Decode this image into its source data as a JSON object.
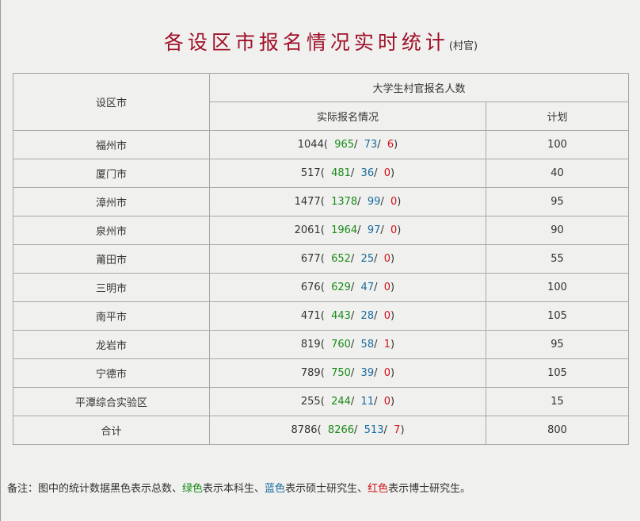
{
  "title": "各设区市报名情况实时统计",
  "title_suffix": "(村官)",
  "headers": {
    "region": "设区市",
    "group": "大学生村官报名人数",
    "actual": "实际报名情况",
    "plan": "计划"
  },
  "rows": [
    {
      "name": "福州市",
      "total": "1044",
      "bachelor": "965",
      "master": "73",
      "doctor": "6",
      "plan": "100"
    },
    {
      "name": "厦门市",
      "total": "517",
      "bachelor": "481",
      "master": "36",
      "doctor": "0",
      "plan": "40"
    },
    {
      "name": "漳州市",
      "total": "1477",
      "bachelor": "1378",
      "master": "99",
      "doctor": "0",
      "plan": "95"
    },
    {
      "name": "泉州市",
      "total": "2061",
      "bachelor": "1964",
      "master": "97",
      "doctor": "0",
      "plan": "90"
    },
    {
      "name": "莆田市",
      "total": "677",
      "bachelor": "652",
      "master": "25",
      "doctor": "0",
      "plan": "55"
    },
    {
      "name": "三明市",
      "total": "676",
      "bachelor": "629",
      "master": "47",
      "doctor": "0",
      "plan": "100"
    },
    {
      "name": "南平市",
      "total": "471",
      "bachelor": "443",
      "master": "28",
      "doctor": "0",
      "plan": "105"
    },
    {
      "name": "龙岩市",
      "total": "819",
      "bachelor": "760",
      "master": "58",
      "doctor": "1",
      "plan": "95"
    },
    {
      "name": "宁德市",
      "total": "789",
      "bachelor": "750",
      "master": "39",
      "doctor": "0",
      "plan": "105"
    },
    {
      "name": "平潭综合实验区",
      "total": "255",
      "bachelor": "244",
      "master": "11",
      "doctor": "0",
      "plan": "15"
    },
    {
      "name": "合计",
      "total": "8786",
      "bachelor": "8266",
      "master": "513",
      "doctor": "7",
      "plan": "800"
    }
  ],
  "note": {
    "p1": "备注：图中的统计数据黑色表示总数、",
    "green": "绿色",
    "p2": "表示本科生、",
    "blue": "蓝色",
    "p3": "表示硕士研究生、",
    "red": "红色",
    "p4": "表示博士研究生。"
  },
  "colors": {
    "title": "#a0102a",
    "bachelor": "#1a8a1a",
    "master": "#1a6aa0",
    "doctor": "#d0101a"
  }
}
